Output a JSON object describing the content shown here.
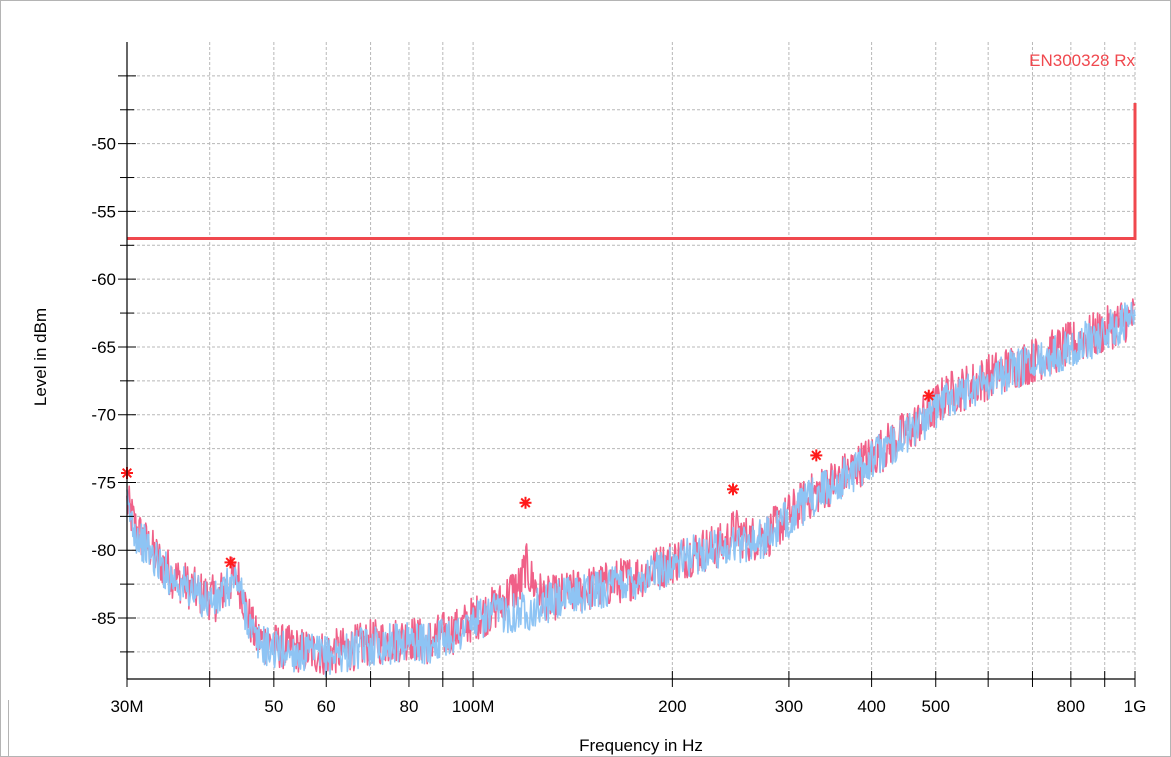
{
  "chart_data": {
    "type": "line",
    "title": "",
    "xlabel": "Frequency in Hz",
    "ylabel": "Level in dBm",
    "x_scale": "log",
    "xlim": [
      30000000,
      1000000000
    ],
    "ylim": [
      -89.5,
      -42.5
    ],
    "grid": true,
    "x_tick_labels": [
      {
        "v": 30000000,
        "label": "30M"
      },
      {
        "v": 50000000,
        "label": "50"
      },
      {
        "v": 60000000,
        "label": "60"
      },
      {
        "v": 80000000,
        "label": "80"
      },
      {
        "v": 100000000,
        "label": "100M"
      },
      {
        "v": 200000000,
        "label": "200"
      },
      {
        "v": 300000000,
        "label": "300"
      },
      {
        "v": 400000000,
        "label": "400"
      },
      {
        "v": 500000000,
        "label": "500"
      },
      {
        "v": 800000000,
        "label": "800"
      },
      {
        "v": 1000000000,
        "label": "1G"
      }
    ],
    "y_tick_labels": [
      {
        "v": -50,
        "label": "-50"
      },
      {
        "v": -55,
        "label": "-55"
      },
      {
        "v": -60,
        "label": "-60"
      },
      {
        "v": -65,
        "label": "-65"
      },
      {
        "v": -70,
        "label": "-70"
      },
      {
        "v": -75,
        "label": "-75"
      },
      {
        "v": -80,
        "label": "-80"
      },
      {
        "v": -85,
        "label": "-85"
      }
    ],
    "limit_line": {
      "name": "EN300328 Rx",
      "color": "#f0484e",
      "points": [
        [
          30000000,
          -57
        ],
        [
          1000000000,
          -57
        ],
        [
          1000000000,
          -47
        ]
      ]
    },
    "series": [
      {
        "color": "#f06088",
        "x": [
          30000000,
          31000000,
          33000000,
          35000000,
          37000000,
          39000000,
          41000000,
          42500000,
          44000000,
          45500000,
          47000000,
          50000000,
          55000000,
          60000000,
          65000000,
          70000000,
          75000000,
          80000000,
          85000000,
          90000000,
          95000000,
          100000000,
          105000000,
          110000000,
          114000000,
          118000000,
          120000000,
          122000000,
          126000000,
          130000000,
          140000000,
          160000000,
          180000000,
          200000000,
          220000000,
          240000000,
          248000000,
          260000000,
          280000000,
          300000000,
          320000000,
          340000000,
          360000000,
          380000000,
          400000000,
          430000000,
          460000000,
          490000000,
          520000000,
          560000000,
          600000000,
          650000000,
          700000000,
          750000000,
          800000000,
          850000000,
          900000000,
          950000000,
          1000000000
        ],
        "values": [
          -76.5,
          -78.5,
          -80.3,
          -81.8,
          -82.6,
          -83.3,
          -83.6,
          -82.5,
          -81.8,
          -84.5,
          -86.5,
          -87.0,
          -87.4,
          -87.6,
          -87.3,
          -86.8,
          -86.7,
          -86.4,
          -86.8,
          -86.2,
          -85.9,
          -85.0,
          -84.6,
          -84.0,
          -83.0,
          -82.6,
          -81.0,
          -82.0,
          -83.2,
          -83.6,
          -83.2,
          -82.5,
          -81.8,
          -80.8,
          -80.0,
          -79.6,
          -78.5,
          -79.2,
          -78.8,
          -77.4,
          -76.2,
          -75.3,
          -74.6,
          -73.8,
          -73.1,
          -72.0,
          -71.0,
          -69.8,
          -68.5,
          -67.9,
          -67.2,
          -66.5,
          -66.0,
          -65.4,
          -64.8,
          -64.3,
          -63.8,
          -63.1,
          -62.8
        ]
      },
      {
        "color": "#8ec4f4",
        "x": [
          30000000,
          31000000,
          33000000,
          35000000,
          37000000,
          39000000,
          41000000,
          42500000,
          44000000,
          45500000,
          47000000,
          50000000,
          55000000,
          60000000,
          65000000,
          70000000,
          75000000,
          80000000,
          85000000,
          90000000,
          95000000,
          100000000,
          105000000,
          110000000,
          114000000,
          118000000,
          120000000,
          122000000,
          126000000,
          130000000,
          140000000,
          160000000,
          180000000,
          200000000,
          220000000,
          240000000,
          248000000,
          260000000,
          280000000,
          300000000,
          320000000,
          340000000,
          360000000,
          380000000,
          400000000,
          430000000,
          460000000,
          490000000,
          520000000,
          560000000,
          600000000,
          650000000,
          700000000,
          750000000,
          800000000,
          850000000,
          900000000,
          950000000,
          1000000000
        ],
        "values": [
          -76.8,
          -78.8,
          -80.6,
          -82.0,
          -82.8,
          -83.5,
          -83.8,
          -82.8,
          -82.1,
          -84.8,
          -86.8,
          -87.3,
          -87.6,
          -87.8,
          -87.5,
          -87.0,
          -86.9,
          -86.6,
          -87.0,
          -86.4,
          -86.1,
          -85.3,
          -84.9,
          -84.5,
          -84.6,
          -84.5,
          -84.3,
          -84.4,
          -84.2,
          -83.9,
          -83.4,
          -82.7,
          -82.0,
          -81.0,
          -80.2,
          -79.8,
          -79.5,
          -79.4,
          -79.0,
          -77.6,
          -76.4,
          -75.5,
          -74.8,
          -74.0,
          -73.3,
          -72.2,
          -71.2,
          -70.0,
          -68.7,
          -68.1,
          -67.4,
          -66.7,
          -66.2,
          -65.6,
          -65.0,
          -64.5,
          -64.0,
          -63.3,
          -63.0
        ]
      }
    ],
    "markers": [
      {
        "x": 30000000,
        "y": -74.3
      },
      {
        "x": 43000000,
        "y": -80.9
      },
      {
        "x": 120000000,
        "y": -76.5
      },
      {
        "x": 247000000,
        "y": -75.5
      },
      {
        "x": 330000000,
        "y": -73.0
      },
      {
        "x": 488000000,
        "y": -68.6
      }
    ],
    "marker_color": "#ff1a1a"
  }
}
